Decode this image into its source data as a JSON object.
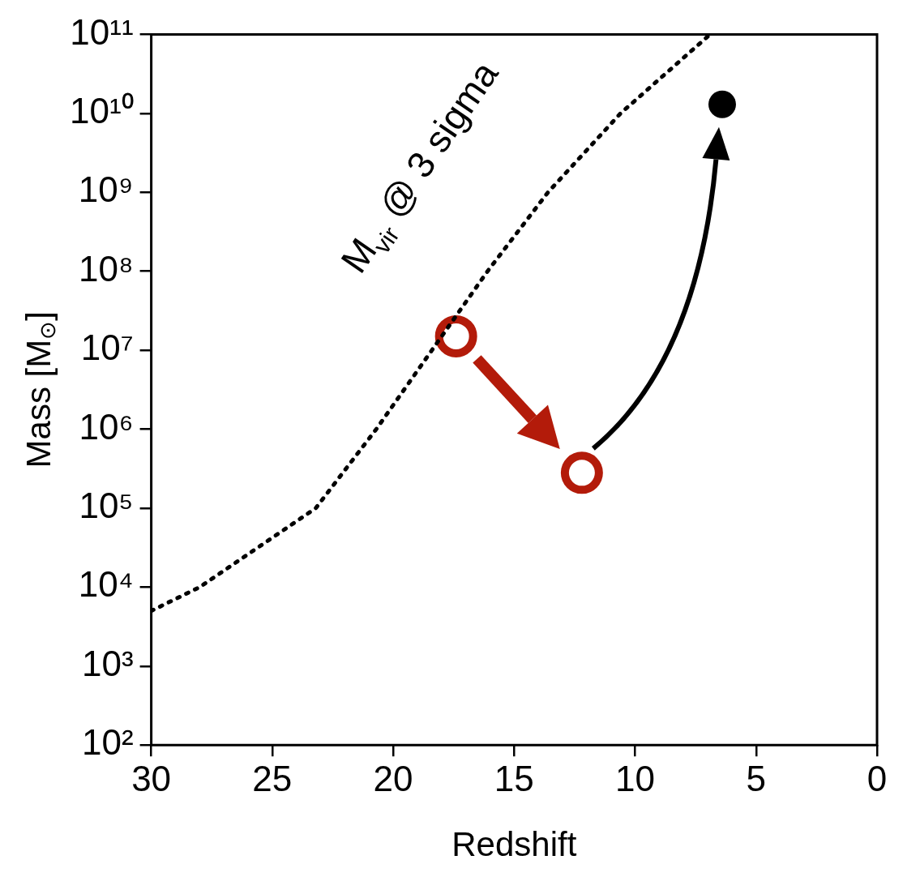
{
  "chart_data": {
    "type": "scatter",
    "xlabel": "Redshift",
    "ylabel": "Mass [M$_{⊙}$]",
    "annotations": [
      "M$_{vir}$ @ 3 sigma"
    ],
    "xlim": [
      30,
      0
    ],
    "xticks": [
      30,
      25,
      20,
      15,
      10,
      5,
      0
    ],
    "ylim": [
      100,
      100000000000
    ],
    "yticks": [
      {
        "value": 100,
        "label": "10²"
      },
      {
        "value": 1000,
        "label": "10³"
      },
      {
        "value": 10000,
        "label": "10⁴"
      },
      {
        "value": 100000,
        "label": "10⁵"
      },
      {
        "value": 1000000,
        "label": "10⁶"
      },
      {
        "value": 10000000,
        "label": "10⁷"
      },
      {
        "value": 100000000,
        "label": "10⁸"
      },
      {
        "value": 1000000000,
        "label": "10⁹"
      },
      {
        "value": 10000000000,
        "label": "10¹⁰"
      },
      {
        "value": 100000000000,
        "label": "10¹¹"
      }
    ],
    "log": "y",
    "grid": false,
    "legend": false,
    "series": [
      {
        "type": "line",
        "line_style": "dotted",
        "marker": "none",
        "color": "#000000",
        "x": [
          30,
          28,
          23.2,
          20.7,
          18.4,
          16.1,
          13.6,
          10.6,
          6.9
        ],
        "values": [
          5000,
          10000,
          100000,
          1000000,
          10000000,
          100000000,
          1000000000,
          10000000000,
          100000000000
        ]
      },
      {
        "type": "scatter",
        "marker": "circle",
        "color": "#b31b0a",
        "x": [
          17.4,
          12.2
        ],
        "values": [
          15000000,
          280000
        ]
      },
      {
        "type": "scatter",
        "marker": "circle",
        "color": "#000000",
        "x": [
          6.4
        ],
        "values": [
          13000000000
        ]
      }
    ]
  }
}
